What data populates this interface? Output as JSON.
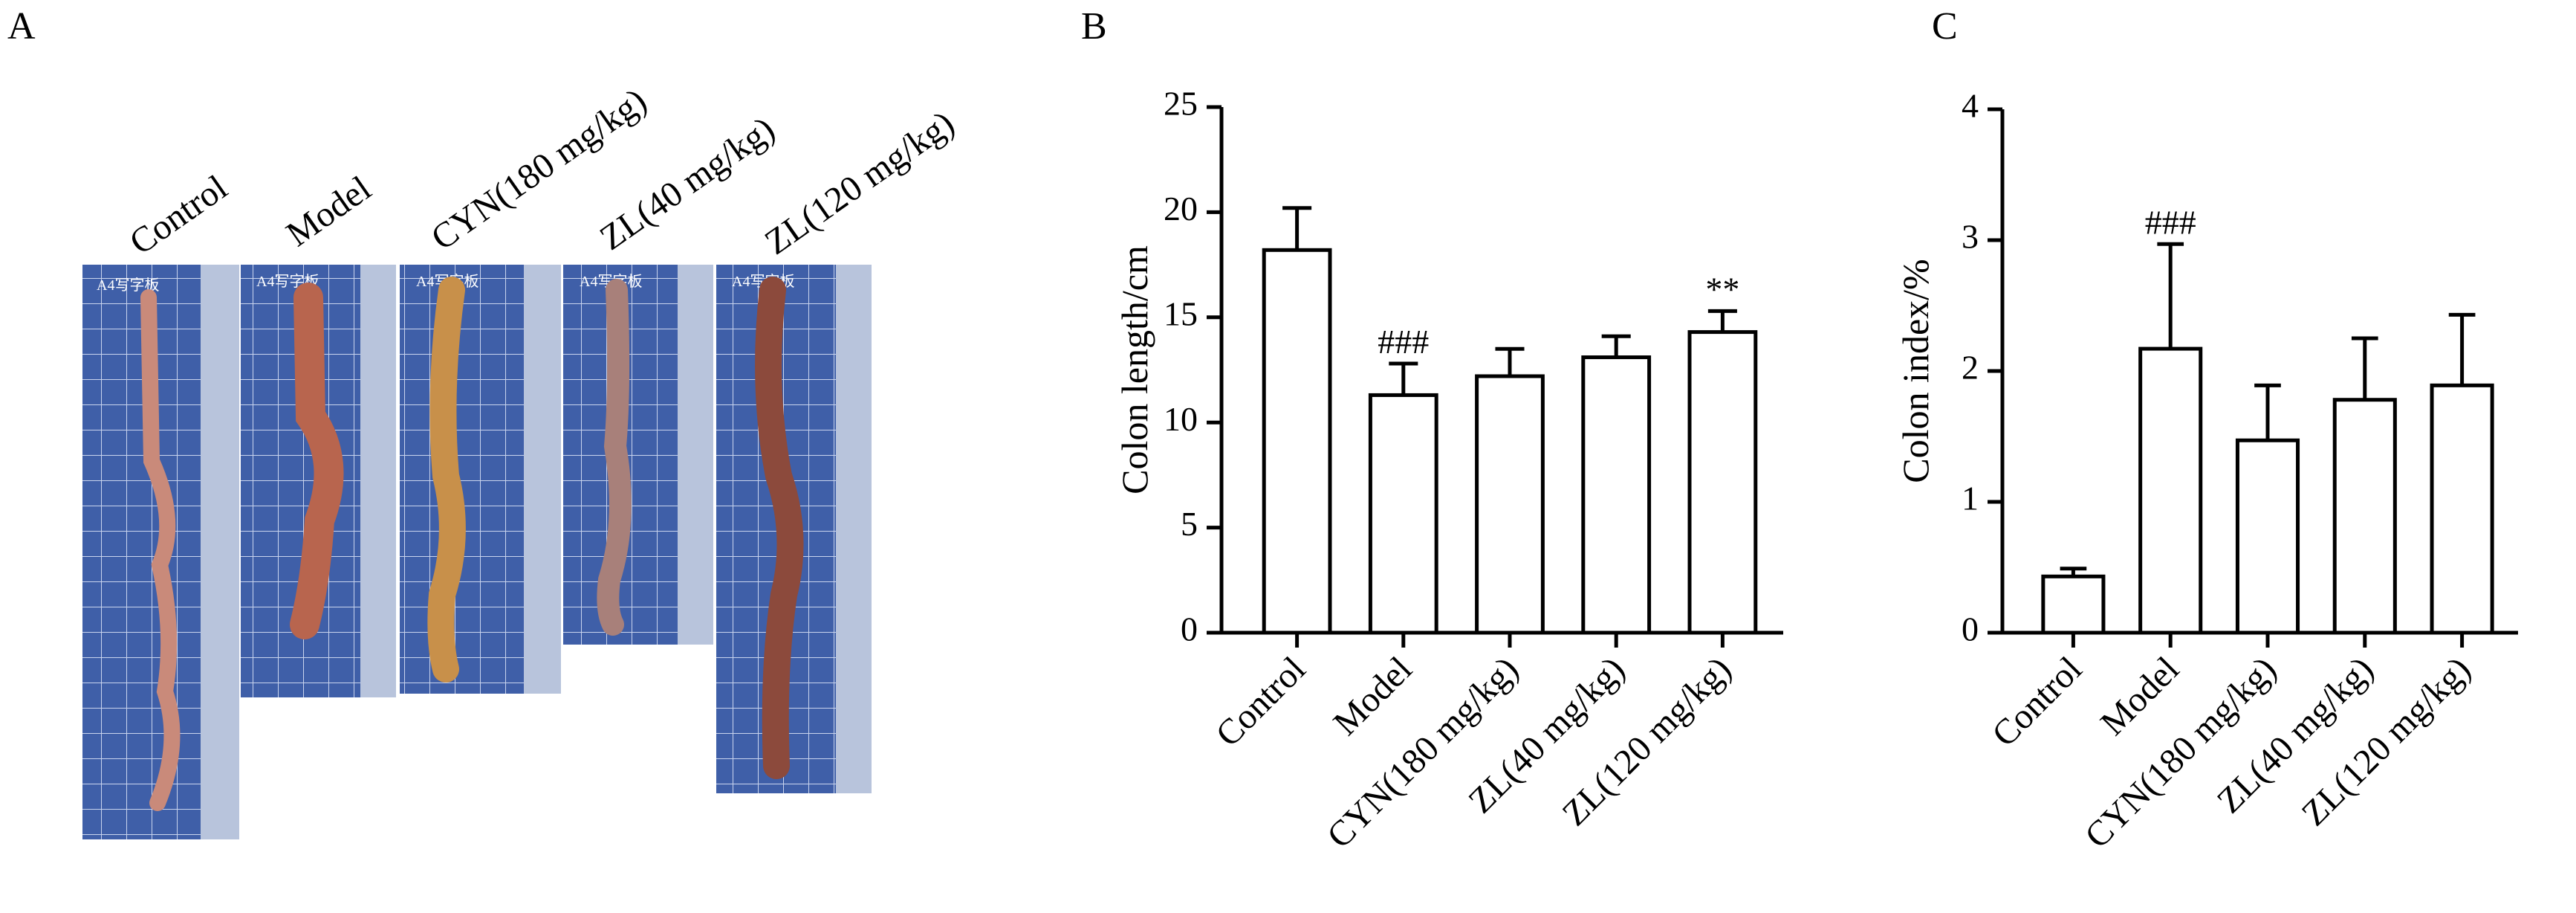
{
  "photo_panel": {
    "label": "A",
    "board_text": "A4写字板",
    "samples": [
      "Control",
      "Model",
      "CYN(180 mg/kg)",
      "ZL(40 mg/kg)",
      "ZL(120 mg/kg)"
    ]
  },
  "chart_data": [
    {
      "type": "bar",
      "panel_label": "B",
      "ylabel": "Colon length/cm",
      "categories": [
        "Control",
        "Model",
        "CYN(180 mg/kg)",
        "ZL(40 mg/kg)",
        "ZL(120 mg/kg)"
      ],
      "values": [
        18.2,
        11.3,
        12.2,
        13.1,
        14.3
      ],
      "errors": [
        2.0,
        1.5,
        1.3,
        1.0,
        1.0
      ],
      "significance": [
        null,
        "###",
        null,
        null,
        "**"
      ],
      "color": "#ffffff",
      "ylim": [
        0,
        25
      ],
      "yticks": [
        0,
        5,
        10,
        15,
        20,
        25
      ]
    },
    {
      "type": "bar",
      "panel_label": "C",
      "ylabel": "Colon index/%",
      "categories": [
        "Control",
        "Model",
        "CYN(180 mg/kg)",
        "ZL(40 mg/kg)",
        "ZL(120 mg/kg)"
      ],
      "values": [
        0.43,
        2.17,
        1.47,
        1.78,
        1.89
      ],
      "errors": [
        0.06,
        0.8,
        0.42,
        0.47,
        0.54
      ],
      "significance": [
        null,
        "###",
        null,
        null,
        null
      ],
      "color": "#ffffff",
      "ylim": [
        0,
        4
      ],
      "yticks": [
        0,
        1,
        2,
        3,
        4
      ]
    }
  ]
}
